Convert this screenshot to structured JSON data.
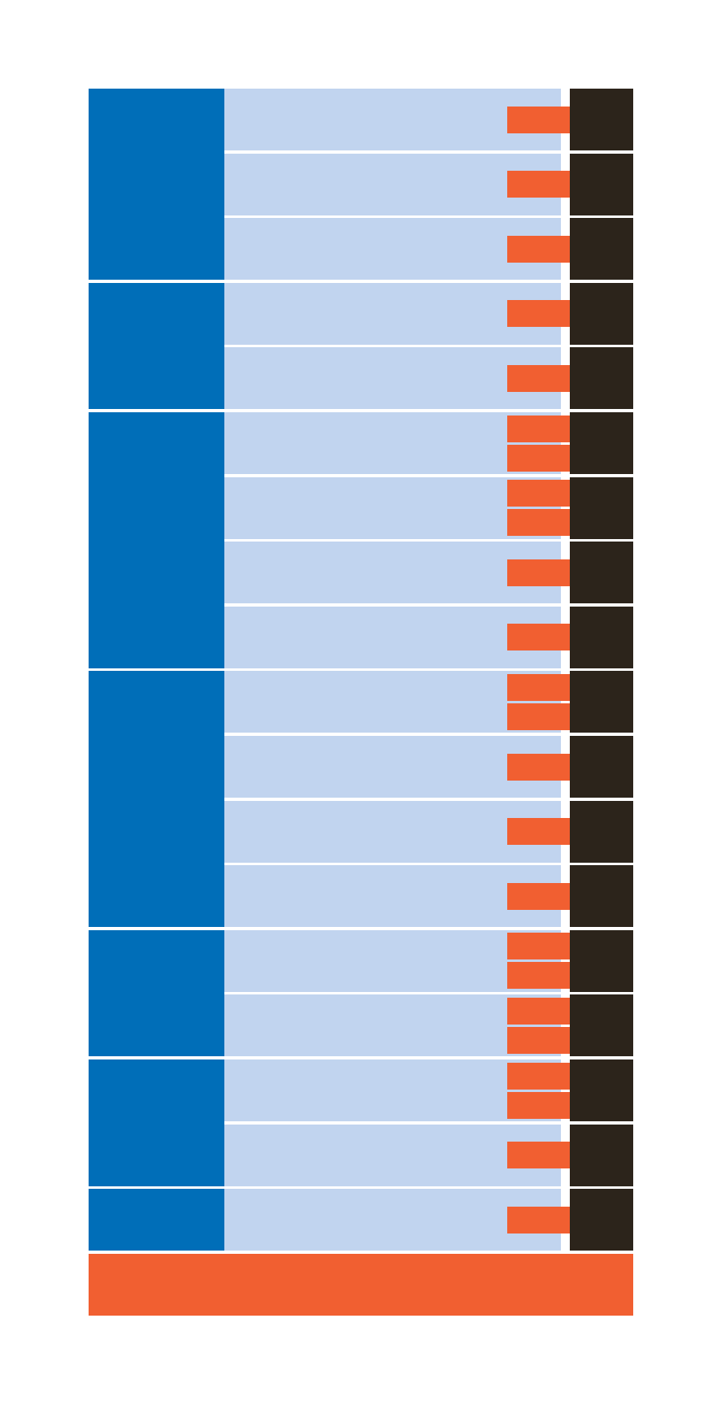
{
  "colors": {
    "background": "#ffffff",
    "group_block": "#006eb8",
    "row_panel": "#c1d4ef",
    "row_end_cap": "#2c241b",
    "marker": "#f15f31",
    "footer_bar": "#f15f31"
  },
  "groups": [
    {
      "rows": [
        {
          "markers": 1
        },
        {
          "markers": 1
        },
        {
          "markers": 1
        }
      ]
    },
    {
      "rows": [
        {
          "markers": 1
        },
        {
          "markers": 1
        }
      ]
    },
    {
      "rows": [
        {
          "markers": 2
        },
        {
          "markers": 2
        },
        {
          "markers": 1
        },
        {
          "markers": 1
        }
      ]
    },
    {
      "rows": [
        {
          "markers": 2
        },
        {
          "markers": 1
        },
        {
          "markers": 1
        },
        {
          "markers": 1
        }
      ]
    },
    {
      "rows": [
        {
          "markers": 2
        },
        {
          "markers": 2
        }
      ]
    },
    {
      "rows": [
        {
          "markers": 2
        },
        {
          "markers": 1
        }
      ]
    },
    {
      "rows": [
        {
          "markers": 1
        }
      ]
    }
  ],
  "footer": {
    "present": true
  }
}
